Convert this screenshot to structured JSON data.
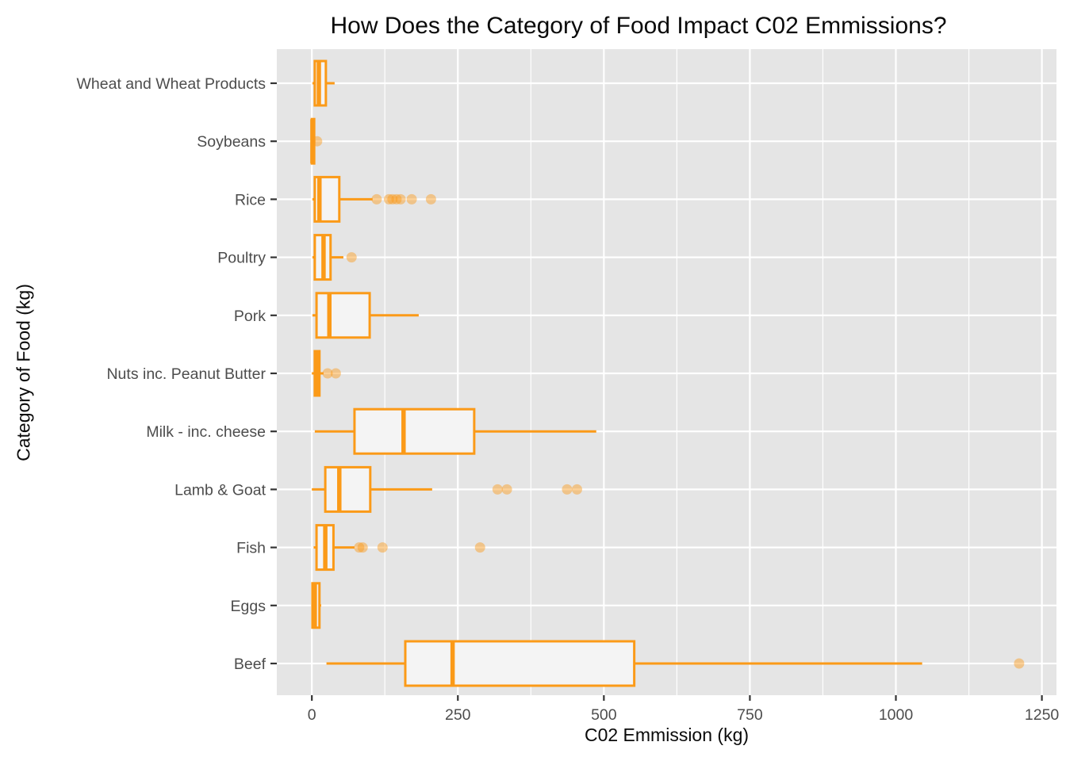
{
  "chart_data": {
    "type": "boxplot",
    "orientation": "horizontal",
    "title": "How Does the Category of Food Impact C02 Emmissions?",
    "xlabel": "C02 Emmission (kg)",
    "ylabel": "Category of Food (kg)",
    "xlim": [
      -60,
      1275
    ],
    "x_ticks": [
      0,
      250,
      500,
      750,
      1000,
      1250
    ],
    "x_minor_ticks": [
      125,
      375,
      625,
      875,
      1125
    ],
    "grid": "white major vertical + minor vertical lines and one horizontal line per category on grey panel",
    "legend": "none",
    "categories_top_to_bottom": [
      "Wheat and Wheat Products",
      "Soybeans",
      "Rice",
      "Poultry",
      "Pork",
      "Nuts inc. Peanut Butter",
      "Milk - inc. cheese",
      "Lamb & Goat",
      "Fish",
      "Eggs",
      "Beef"
    ],
    "boxes": [
      {
        "label": "Wheat and Wheat Products",
        "whisker_low": 1,
        "q1": 5,
        "median": 12,
        "q3": 24,
        "whisker_high": 39,
        "outliers": []
      },
      {
        "label": "Soybeans",
        "whisker_low": 0,
        "q1": 0,
        "median": 1,
        "q3": 4,
        "whisker_high": 6,
        "outliers": [
          9
        ]
      },
      {
        "label": "Rice",
        "whisker_low": 1,
        "q1": 5,
        "median": 13,
        "q3": 47,
        "whisker_high": 104,
        "outliers": [
          111,
          132,
          138,
          145,
          152,
          171,
          204
        ]
      },
      {
        "label": "Poultry",
        "whisker_low": 1,
        "q1": 5,
        "median": 20,
        "q3": 32,
        "whisker_high": 54,
        "outliers": [
          68
        ]
      },
      {
        "label": "Pork",
        "whisker_low": 1,
        "q1": 8,
        "median": 30,
        "q3": 99,
        "whisker_high": 183,
        "outliers": []
      },
      {
        "label": "Nuts inc. Peanut Butter",
        "whisker_low": 0,
        "q1": 5,
        "median": 8,
        "q3": 13,
        "whisker_high": 20,
        "outliers": [
          27,
          41
        ]
      },
      {
        "label": "Milk - inc. cheese",
        "whisker_low": 5,
        "q1": 73,
        "median": 157,
        "q3": 278,
        "whisker_high": 487,
        "outliers": []
      },
      {
        "label": "Lamb & Goat",
        "whisker_low": 0,
        "q1": 23,
        "median": 47,
        "q3": 100,
        "whisker_high": 206,
        "outliers": [
          318,
          334,
          437,
          454
        ]
      },
      {
        "label": "Fish",
        "whisker_low": 3,
        "q1": 8,
        "median": 23,
        "q3": 37,
        "whisker_high": 73,
        "outliers": [
          81,
          87,
          121,
          288
        ]
      },
      {
        "label": "Eggs",
        "whisker_low": 0,
        "q1": 1,
        "median": 5,
        "q3": 13,
        "whisker_high": 16,
        "outliers": []
      },
      {
        "label": "Beef",
        "whisker_low": 25,
        "q1": 160,
        "median": 241,
        "q3": 552,
        "whisker_high": 1045,
        "outliers": [
          1211
        ]
      }
    ],
    "colors": {
      "box_stroke": "#FB9A18",
      "box_fill": "#F4F4F4",
      "outlier_fill": "#FB9A18",
      "panel_bg": "#E5E5E5",
      "grid": "#FFFFFF",
      "tick_label": "#4D4D4D",
      "axis_tick": "#333333",
      "title": "#0A0A0A"
    }
  }
}
